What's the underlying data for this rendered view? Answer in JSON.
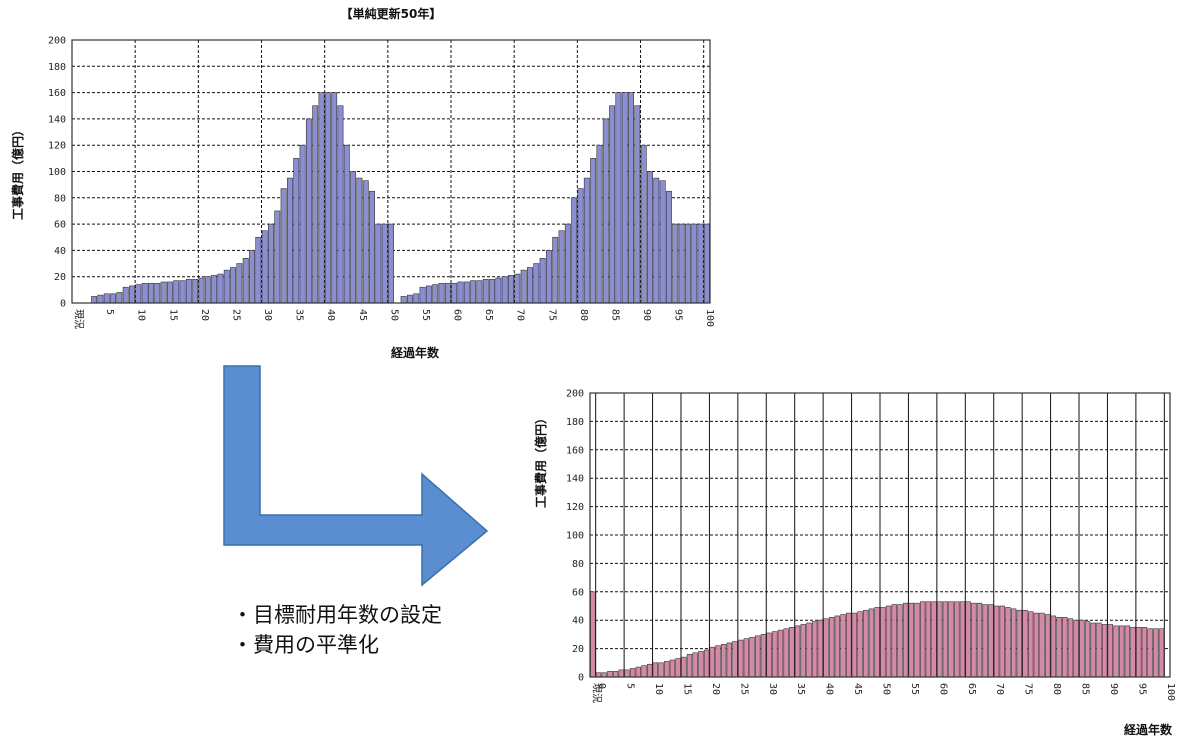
{
  "notes": [
    "・目標耐用年数の設定",
    "・費用の平準化"
  ],
  "arrow": {
    "color": "#5b8ed0",
    "stroke": "#3b6fae"
  },
  "chart_data": [
    {
      "type": "bar",
      "title": "【単純更新50年】",
      "xlabel": "経過年数",
      "ylabel": "工事費用（億円）",
      "ylim": [
        0,
        200
      ],
      "ytick_labels": [
        "0",
        "20",
        "40",
        "60",
        "80",
        "100",
        "120",
        "140",
        "160",
        "180",
        "200"
      ],
      "xtick_labels": [
        "現況",
        "5",
        "10",
        "15",
        "20",
        "25",
        "30",
        "35",
        "40",
        "45",
        "50",
        "55",
        "60",
        "65",
        "70",
        "75",
        "80",
        "85",
        "90",
        "95",
        "100"
      ],
      "color": "#8b8fd0",
      "x": [
        1,
        2,
        3,
        4,
        5,
        6,
        7,
        8,
        9,
        10,
        11,
        12,
        13,
        14,
        15,
        16,
        17,
        18,
        19,
        20,
        21,
        22,
        23,
        24,
        25,
        26,
        27,
        28,
        29,
        30,
        31,
        32,
        33,
        34,
        35,
        36,
        37,
        38,
        39,
        40,
        41,
        42,
        43,
        44,
        45,
        46,
        47,
        48,
        49,
        50,
        51,
        52,
        53,
        54,
        55,
        56,
        57,
        58,
        59,
        60,
        61,
        62,
        63,
        64,
        65,
        66,
        67,
        68,
        69,
        70,
        71,
        72,
        73,
        74,
        75,
        76,
        77,
        78,
        79,
        80,
        81,
        82,
        83,
        84,
        85,
        86,
        87,
        88,
        89,
        90,
        91,
        92,
        93,
        94,
        95,
        96,
        97,
        98,
        99,
        100
      ],
      "values": [
        0,
        0,
        5,
        6,
        7,
        7,
        8,
        12,
        13,
        14,
        15,
        15,
        15,
        16,
        16,
        17,
        17,
        18,
        18,
        19,
        20,
        21,
        22,
        25,
        27,
        30,
        34,
        40,
        50,
        55,
        60,
        70,
        87,
        95,
        110,
        120,
        140,
        150,
        160,
        160,
        160,
        150,
        120,
        100,
        95,
        93,
        85,
        60,
        60,
        60,
        0,
        5,
        6,
        7,
        12,
        13,
        14,
        15,
        15,
        15,
        16,
        16,
        17,
        17,
        18,
        18,
        19,
        20,
        21,
        22,
        25,
        27,
        30,
        34,
        40,
        50,
        55,
        60,
        80,
        87,
        95,
        110,
        120,
        140,
        150,
        160,
        160,
        160,
        150,
        120,
        100,
        95,
        93,
        85,
        60,
        60,
        60,
        60,
        60,
        60
      ]
    },
    {
      "type": "bar",
      "title": "",
      "xlabel": "経過年数",
      "ylabel": "工事費用（億円）",
      "ylim": [
        0,
        200
      ],
      "ytick_labels": [
        "0",
        "20",
        "40",
        "60",
        "80",
        "100",
        "120",
        "140",
        "160",
        "180",
        "200"
      ],
      "xtick_labels": [
        "現況",
        "0",
        "5",
        "10",
        "15",
        "20",
        "25",
        "30",
        "35",
        "40",
        "45",
        "50",
        "55",
        "60",
        "65",
        "70",
        "75",
        "80",
        "85",
        "90",
        "95",
        "100"
      ],
      "color": "#d38aa6",
      "x": [
        0,
        1,
        2,
        3,
        4,
        5,
        6,
        7,
        8,
        9,
        10,
        11,
        12,
        13,
        14,
        15,
        16,
        17,
        18,
        19,
        20,
        21,
        22,
        23,
        24,
        25,
        26,
        27,
        28,
        29,
        30,
        31,
        32,
        33,
        34,
        35,
        36,
        37,
        38,
        39,
        40,
        41,
        42,
        43,
        44,
        45,
        46,
        47,
        48,
        49,
        50,
        51,
        52,
        53,
        54,
        55,
        56,
        57,
        58,
        59,
        60,
        61,
        62,
        63,
        64,
        65,
        66,
        67,
        68,
        69,
        70,
        71,
        72,
        73,
        74,
        75,
        76,
        77,
        78,
        79,
        80,
        81,
        82,
        83,
        84,
        85,
        86,
        87,
        88,
        89,
        90,
        91,
        92,
        93,
        94,
        95,
        96,
        97,
        98,
        99,
        100
      ],
      "values": [
        60,
        3,
        3,
        4,
        4,
        5,
        5,
        6,
        7,
        8,
        9,
        10,
        10,
        11,
        12,
        13,
        14,
        16,
        17,
        18,
        19,
        21,
        22,
        23,
        24,
        25,
        26,
        27,
        28,
        29,
        30,
        31,
        32,
        33,
        34,
        35,
        36,
        37,
        38,
        39,
        40,
        41,
        42,
        43,
        44,
        45,
        45,
        46,
        47,
        48,
        49,
        49,
        50,
        51,
        51,
        52,
        52,
        52,
        53,
        53,
        53,
        53,
        53,
        53,
        53,
        53,
        53,
        52,
        52,
        51,
        51,
        50,
        50,
        49,
        48,
        47,
        47,
        46,
        45,
        45,
        44,
        43,
        42,
        42,
        41,
        40,
        40,
        39,
        38,
        38,
        37,
        37,
        36,
        36,
        36,
        35,
        35,
        35,
        34,
        34,
        34
      ]
    }
  ]
}
